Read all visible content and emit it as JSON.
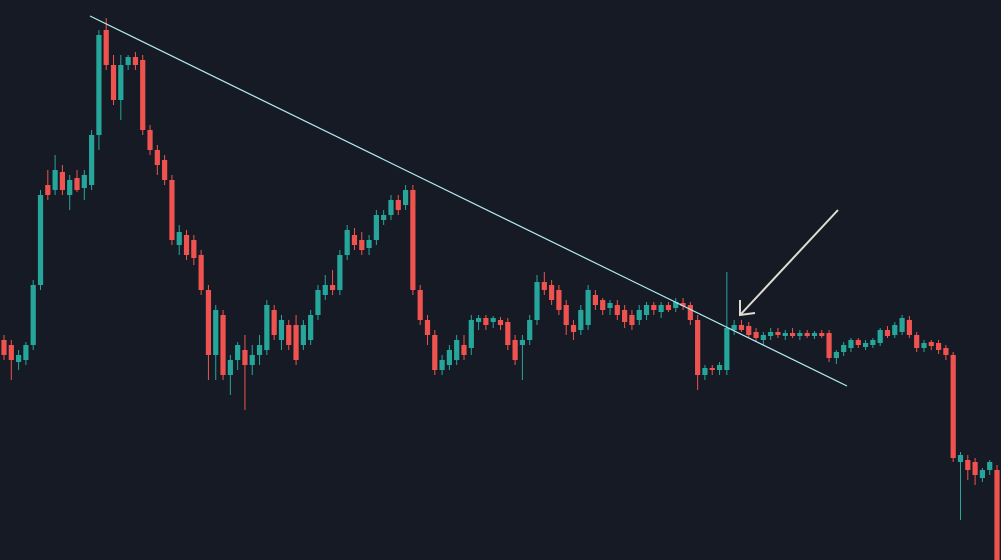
{
  "chart_data": {
    "type": "candlestick",
    "up_color": "#26a69a",
    "down_color": "#ef5350",
    "ylim": [
      0,
      560
    ],
    "open": [
      220,
      215,
      198,
      200,
      215,
      275,
      375,
      370,
      388,
      365,
      382,
      372,
      375,
      425,
      530,
      495,
      460,
      495,
      503,
      500,
      430,
      410,
      400,
      380,
      315,
      325,
      320,
      305,
      270,
      205,
      245,
      185,
      200,
      210,
      195,
      205,
      210,
      250,
      220,
      235,
      235,
      215,
      220,
      245,
      265,
      275,
      270,
      305,
      325,
      320,
      312,
      320,
      340,
      345,
      360,
      355,
      370,
      270,
      240,
      225,
      190,
      195,
      200,
      215,
      212,
      238,
      242,
      238,
      240,
      238,
      220,
      215,
      220,
      240,
      278,
      275,
      270,
      255,
      235,
      230,
      235,
      265,
      260,
      252,
      255,
      250,
      245,
      240,
      245,
      255,
      248,
      255,
      252,
      257,
      255,
      240,
      185,
      192,
      190,
      190,
      230,
      235,
      234,
      228,
      220,
      224,
      228,
      224,
      227,
      224,
      227,
      224,
      227,
      227,
      202,
      208,
      212,
      220,
      213,
      215,
      217,
      230,
      225,
      228,
      240,
      225,
      212,
      218,
      217,
      212,
      205,
      98,
      100,
      98,
      82,
      90,
      90
    ],
    "high": [
      225,
      220,
      210,
      218,
      280,
      370,
      390,
      405,
      395,
      385,
      390,
      390,
      430,
      530,
      542,
      505,
      505,
      505,
      508,
      505,
      435,
      415,
      405,
      385,
      335,
      330,
      325,
      310,
      275,
      255,
      250,
      205,
      218,
      225,
      215,
      225,
      260,
      255,
      245,
      240,
      245,
      240,
      250,
      275,
      285,
      290,
      310,
      335,
      332,
      328,
      325,
      350,
      350,
      365,
      365,
      375,
      375,
      275,
      245,
      230,
      205,
      215,
      225,
      225,
      245,
      245,
      245,
      244,
      243,
      242,
      225,
      225,
      245,
      285,
      288,
      280,
      275,
      260,
      240,
      255,
      275,
      270,
      262,
      260,
      260,
      255,
      250,
      255,
      258,
      258,
      258,
      258,
      262,
      262,
      258,
      245,
      195,
      195,
      198,
      288,
      240,
      240,
      238,
      232,
      228,
      232,
      232,
      230,
      232,
      230,
      230,
      229,
      230,
      230,
      210,
      218,
      222,
      222,
      220,
      222,
      232,
      234,
      238,
      245,
      244,
      228,
      220,
      220,
      220,
      215,
      208,
      108,
      105,
      102,
      92,
      100,
      95
    ],
    "low": [
      200,
      180,
      190,
      195,
      210,
      270,
      360,
      365,
      365,
      350,
      368,
      360,
      370,
      410,
      490,
      455,
      440,
      490,
      490,
      425,
      405,
      385,
      375,
      315,
      305,
      300,
      295,
      265,
      180,
      180,
      180,
      165,
      190,
      150,
      185,
      195,
      205,
      220,
      210,
      210,
      195,
      210,
      215,
      240,
      260,
      265,
      265,
      300,
      310,
      305,
      305,
      315,
      335,
      340,
      345,
      350,
      265,
      235,
      215,
      185,
      185,
      190,
      195,
      200,
      205,
      230,
      230,
      232,
      230,
      210,
      195,
      180,
      215,
      235,
      265,
      255,
      245,
      225,
      220,
      225,
      230,
      250,
      245,
      245,
      240,
      232,
      230,
      235,
      240,
      245,
      242,
      248,
      248,
      250,
      235,
      170,
      180,
      185,
      185,
      185,
      225,
      228,
      222,
      218,
      215,
      220,
      222,
      220,
      222,
      220,
      222,
      221,
      222,
      198,
      196,
      204,
      208,
      212,
      210,
      212,
      214,
      222,
      222,
      225,
      222,
      208,
      208,
      210,
      206,
      200,
      98,
      40,
      80,
      75,
      78,
      85,
      0
    ],
    "close": [
      205,
      200,
      205,
      215,
      275,
      365,
      365,
      390,
      370,
      380,
      370,
      385,
      425,
      525,
      495,
      460,
      495,
      503,
      495,
      430,
      410,
      395,
      380,
      320,
      328,
      305,
      302,
      270,
      205,
      250,
      185,
      200,
      215,
      195,
      205,
      215,
      255,
      225,
      240,
      215,
      200,
      235,
      245,
      270,
      275,
      270,
      305,
      330,
      315,
      310,
      320,
      345,
      345,
      360,
      350,
      370,
      270,
      240,
      225,
      190,
      200,
      210,
      220,
      205,
      240,
      242,
      235,
      242,
      235,
      215,
      200,
      220,
      240,
      278,
      270,
      260,
      250,
      235,
      228,
      250,
      270,
      255,
      250,
      257,
      245,
      238,
      235,
      250,
      255,
      250,
      255,
      250,
      258,
      254,
      240,
      185,
      192,
      190,
      195,
      232,
      235,
      230,
      225,
      222,
      225,
      228,
      225,
      227,
      224,
      227,
      224,
      227,
      224,
      202,
      208,
      215,
      220,
      215,
      217,
      220,
      230,
      224,
      235,
      242,
      225,
      212,
      217,
      214,
      210,
      205,
      102,
      105,
      90,
      85,
      90,
      98,
      0
    ]
  }
}
